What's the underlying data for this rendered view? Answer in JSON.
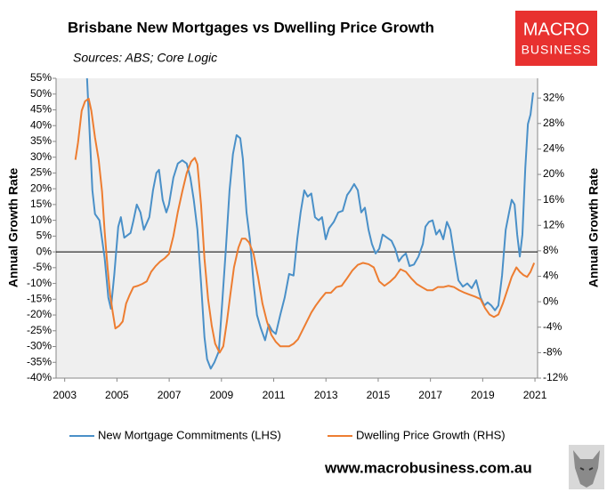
{
  "chart_data": {
    "type": "line",
    "title": "Brisbane New Mortgages vs Dwelling Price Growth",
    "subtitle": "Sources: ABS; Core Logic",
    "ylabel": "Annual Growth Rate",
    "y2label": "Annual Growth Rate",
    "xlim": [
      2002.67,
      2021.1
    ],
    "xticks": [
      2003,
      2005,
      2007,
      2009,
      2011,
      2013,
      2015,
      2017,
      2019,
      2021
    ],
    "ylim": [
      -40,
      55
    ],
    "yticks": [
      {
        "value": -40,
        "label": "-40%"
      },
      {
        "value": -35,
        "label": "-35%"
      },
      {
        "value": -30,
        "label": "-30%"
      },
      {
        "value": -25,
        "label": "-25%"
      },
      {
        "value": -20,
        "label": "-20%"
      },
      {
        "value": -15,
        "label": "-15%"
      },
      {
        "value": -10,
        "label": "-10%"
      },
      {
        "value": -5,
        "label": "-5%"
      },
      {
        "value": 0,
        "label": "0%"
      },
      {
        "value": 5,
        "label": "5%"
      },
      {
        "value": 10,
        "label": "10%"
      },
      {
        "value": 15,
        "label": "15%"
      },
      {
        "value": 20,
        "label": "20%"
      },
      {
        "value": 25,
        "label": "25%"
      },
      {
        "value": 30,
        "label": "30%"
      },
      {
        "value": 35,
        "label": "35%"
      },
      {
        "value": 40,
        "label": "40%"
      },
      {
        "value": 45,
        "label": "45%"
      },
      {
        "value": 50,
        "label": "50%"
      },
      {
        "value": 55,
        "label": "55%"
      }
    ],
    "y2lim": [
      -12,
      35.1
    ],
    "y2ticks": [
      {
        "value": -12,
        "label": "-12%"
      },
      {
        "value": -8,
        "label": "-8%"
      },
      {
        "value": -4,
        "label": "-4%"
      },
      {
        "value": 0,
        "label": "0%"
      },
      {
        "value": 4,
        "label": "4%"
      },
      {
        "value": 8,
        "label": "8%"
      },
      {
        "value": 12,
        "label": "12%"
      },
      {
        "value": 16,
        "label": "16%"
      },
      {
        "value": 20,
        "label": "20%"
      },
      {
        "value": 24,
        "label": "24%"
      },
      {
        "value": 28,
        "label": "28%"
      },
      {
        "value": 32,
        "label": "32%"
      }
    ],
    "legend": "bottom",
    "series": [
      {
        "name": "New Mortgage Commitments (LHS)",
        "color": "#4a90c8",
        "axis": "y",
        "x": [
          2003.85,
          2004.06,
          2004.16,
          2004.33,
          2004.53,
          2004.67,
          2004.77,
          2004.9,
          2005.05,
          2005.15,
          2005.28,
          2005.52,
          2005.62,
          2005.76,
          2005.9,
          2006.03,
          2006.24,
          2006.38,
          2006.51,
          2006.61,
          2006.75,
          2006.89,
          2006.99,
          2007.16,
          2007.33,
          2007.5,
          2007.67,
          2007.81,
          2007.94,
          2008.08,
          2008.22,
          2008.35,
          2008.45,
          2008.59,
          2008.73,
          2008.9,
          2009.03,
          2009.17,
          2009.31,
          2009.44,
          2009.58,
          2009.72,
          2009.82,
          2009.96,
          2010.09,
          2010.23,
          2010.36,
          2010.5,
          2010.67,
          2010.81,
          2010.94,
          2011.08,
          2011.25,
          2011.42,
          2011.59,
          2011.76,
          2011.9,
          2012.03,
          2012.17,
          2012.3,
          2012.44,
          2012.58,
          2012.72,
          2012.85,
          2012.99,
          2013.12,
          2013.3,
          2013.47,
          2013.64,
          2013.81,
          2013.94,
          2014.08,
          2014.22,
          2014.35,
          2014.49,
          2014.63,
          2014.76,
          2014.9,
          2015.04,
          2015.17,
          2015.34,
          2015.51,
          2015.65,
          2015.79,
          2015.92,
          2016.06,
          2016.2,
          2016.37,
          2016.54,
          2016.71,
          2016.81,
          2016.94,
          2017.08,
          2017.22,
          2017.35,
          2017.49,
          2017.63,
          2017.76,
          2017.9,
          2018.07,
          2018.24,
          2018.41,
          2018.58,
          2018.75,
          2018.92,
          2019.06,
          2019.19,
          2019.33,
          2019.47,
          2019.6,
          2019.74,
          2019.88,
          2020.01,
          2020.11,
          2020.22,
          2020.32,
          2020.42,
          2020.52,
          2020.63,
          2020.73,
          2020.83,
          2020.93
        ],
        "values": [
          56,
          19.5,
          12,
          10,
          -2,
          -14.5,
          -18,
          -7,
          8,
          11,
          4.5,
          6,
          9.5,
          15,
          12.5,
          7,
          11,
          19.5,
          25,
          26,
          16.5,
          12.5,
          15,
          23.5,
          28,
          29,
          28,
          23.5,
          16.5,
          7,
          -10,
          -27,
          -34,
          -37,
          -35,
          -31.5,
          -16,
          1,
          19.5,
          31,
          37,
          36,
          29.5,
          12.5,
          4,
          -10,
          -20,
          -24,
          -28,
          -23,
          -25,
          -26,
          -20,
          -14.5,
          -7,
          -7.5,
          4,
          12.5,
          19.5,
          17.5,
          18.5,
          11,
          10,
          11,
          4,
          7.5,
          9.5,
          12.5,
          13,
          18,
          19.5,
          21.5,
          19.5,
          12.5,
          14,
          7,
          2.5,
          -0.5,
          1,
          5.5,
          4.5,
          3.5,
          1,
          -3,
          -1.5,
          -0.5,
          -4.5,
          -4,
          -1.5,
          2.5,
          8,
          9.5,
          10,
          5.5,
          7,
          4,
          9.5,
          7,
          -0.5,
          -9,
          -11,
          -10,
          -11.5,
          -9,
          -14.5,
          -17,
          -16,
          -17,
          -18.5,
          -17,
          -7.5,
          7,
          12.5,
          16.5,
          15,
          5.5,
          -1.5,
          5.5,
          26.5,
          40.5,
          43.5,
          50.5
        ]
      },
      {
        "name": "Dwelling Price Growth (RHS)",
        "color": "#ed7d31",
        "axis": "y2",
        "x": [
          2003.41,
          2003.51,
          2003.65,
          2003.78,
          2003.92,
          2004.02,
          2004.16,
          2004.3,
          2004.43,
          2004.53,
          2004.64,
          2004.74,
          2004.84,
          2004.94,
          2005.08,
          2005.22,
          2005.35,
          2005.49,
          2005.63,
          2005.8,
          2005.97,
          2006.14,
          2006.31,
          2006.48,
          2006.65,
          2006.82,
          2006.99,
          2007.16,
          2007.33,
          2007.5,
          2007.67,
          2007.84,
          2007.98,
          2008.08,
          2008.22,
          2008.35,
          2008.49,
          2008.63,
          2008.76,
          2008.93,
          2009.07,
          2009.21,
          2009.34,
          2009.48,
          2009.65,
          2009.78,
          2009.92,
          2010.06,
          2010.23,
          2010.4,
          2010.57,
          2010.74,
          2010.91,
          2011.08,
          2011.25,
          2011.42,
          2011.59,
          2011.76,
          2011.93,
          2012.1,
          2012.27,
          2012.44,
          2012.61,
          2012.79,
          2012.99,
          2013.19,
          2013.4,
          2013.6,
          2013.81,
          2014.01,
          2014.22,
          2014.42,
          2014.63,
          2014.83,
          2015.04,
          2015.24,
          2015.44,
          2015.65,
          2015.85,
          2016.06,
          2016.26,
          2016.47,
          2016.67,
          2016.88,
          2017.08,
          2017.28,
          2017.49,
          2017.69,
          2017.9,
          2018.1,
          2018.31,
          2018.51,
          2018.71,
          2018.92,
          2019.09,
          2019.26,
          2019.43,
          2019.6,
          2019.77,
          2019.94,
          2020.11,
          2020.29,
          2020.42,
          2020.56,
          2020.7,
          2020.83,
          2020.97
        ],
        "values": [
          22.3,
          25,
          30,
          31.5,
          31.9,
          30,
          25.8,
          22.3,
          17.3,
          11,
          5.4,
          1.1,
          -1.7,
          -4.2,
          -3.8,
          -3.1,
          -0.3,
          1.1,
          2.3,
          2.5,
          2.8,
          3.2,
          4.7,
          5.6,
          6.3,
          6.8,
          7.5,
          10.3,
          14.1,
          17.3,
          20.2,
          22,
          22.6,
          21.6,
          15.2,
          6.8,
          0.4,
          -3.8,
          -6.6,
          -8,
          -7,
          -3.1,
          1.1,
          5.4,
          8.5,
          9.9,
          9.9,
          9.3,
          7.5,
          3.9,
          -0.3,
          -3.1,
          -5.2,
          -6.3,
          -7,
          -7,
          -7,
          -6.6,
          -5.9,
          -4.5,
          -3.1,
          -1.7,
          -0.6,
          0.4,
          1.4,
          1.4,
          2.3,
          2.5,
          3.7,
          4.9,
          5.8,
          6.1,
          5.9,
          5.4,
          3.2,
          2.5,
          3.1,
          3.9,
          5.1,
          4.7,
          3.7,
          2.8,
          2.3,
          1.8,
          1.8,
          2.3,
          2.3,
          2.5,
          2.3,
          1.8,
          1.4,
          1.1,
          0.8,
          0.4,
          -1,
          -2,
          -2.4,
          -2,
          -0.3,
          1.8,
          3.9,
          5.4,
          4.7,
          4.2,
          3.9,
          4.7,
          6.1
        ]
      }
    ]
  },
  "logo": {
    "line1": "MACRO",
    "line2": "BUSINESS"
  },
  "website": "www.macrobusiness.com.au"
}
